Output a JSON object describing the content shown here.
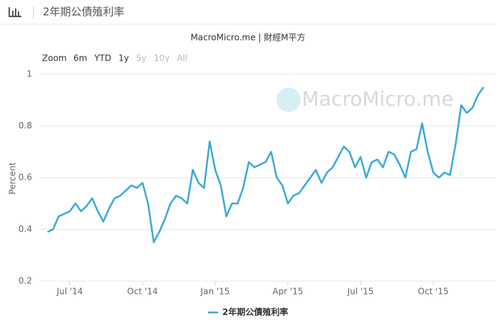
{
  "header": {
    "title": "2年期公債殖利率"
  },
  "chart_data": {
    "type": "line",
    "title": "MacroMicro.me | 財經M平方",
    "watermark": "MacroMicro.me",
    "zoom": {
      "label": "Zoom",
      "buttons": [
        {
          "text": "6m",
          "enabled": true
        },
        {
          "text": "YTD",
          "enabled": true
        },
        {
          "text": "1y",
          "enabled": true
        },
        {
          "text": "5y",
          "enabled": false
        },
        {
          "text": "10y",
          "enabled": false
        },
        {
          "text": "All",
          "enabled": false
        }
      ]
    },
    "ylabel": "Percent",
    "categories": [
      null,
      null,
      null,
      null,
      "Jul '14",
      null,
      null,
      null,
      null,
      null,
      null,
      null,
      null,
      null,
      null,
      null,
      null,
      "Oct '14",
      null,
      null,
      null,
      null,
      null,
      null,
      null,
      null,
      null,
      null,
      null,
      null,
      "Jan '15",
      null,
      null,
      null,
      null,
      null,
      null,
      null,
      null,
      null,
      null,
      null,
      null,
      "Apr '15",
      null,
      null,
      null,
      null,
      null,
      null,
      null,
      null,
      null,
      null,
      null,
      null,
      "Jul '15",
      null,
      null,
      null,
      null,
      null,
      null,
      null,
      null,
      null,
      null,
      null,
      null,
      "Oct '15",
      null,
      null,
      null,
      null,
      null,
      null,
      null,
      null,
      null
    ],
    "series": [
      {
        "name": "2年期公債殖利率",
        "color": "#3aa8d8",
        "values": [
          0.39,
          0.4,
          0.45,
          0.46,
          0.47,
          0.5,
          0.47,
          0.49,
          0.52,
          0.47,
          0.43,
          0.48,
          0.52,
          0.53,
          0.55,
          0.57,
          0.56,
          0.58,
          0.5,
          0.35,
          0.39,
          0.44,
          0.5,
          0.53,
          0.52,
          0.5,
          0.63,
          0.58,
          0.56,
          0.74,
          0.63,
          0.57,
          0.45,
          0.5,
          0.5,
          0.56,
          0.66,
          0.64,
          0.65,
          0.66,
          0.7,
          0.6,
          0.57,
          0.5,
          0.53,
          0.54,
          0.57,
          0.6,
          0.63,
          0.58,
          0.62,
          0.64,
          0.68,
          0.72,
          0.7,
          0.64,
          0.68,
          0.6,
          0.66,
          0.67,
          0.64,
          0.7,
          0.69,
          0.65,
          0.6,
          0.7,
          0.71,
          0.81,
          0.7,
          0.62,
          0.6,
          0.62,
          0.61,
          0.73,
          0.88,
          0.85,
          0.87,
          0.92,
          0.95
        ]
      }
    ],
    "ylim": [
      0.2,
      1
    ],
    "yticks": [
      0.2,
      0.4,
      0.6,
      0.8,
      1
    ],
    "grid": true,
    "legend": "bottom"
  }
}
